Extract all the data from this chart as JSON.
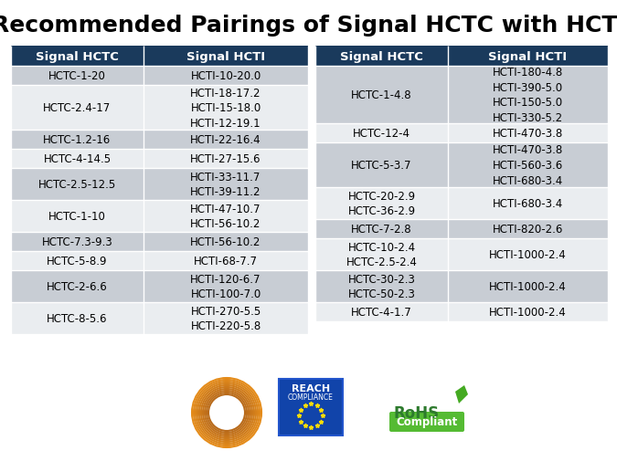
{
  "title": "Recommended Pairings of Signal HCTC with HCTI",
  "title_fontsize": 18,
  "title_fontweight": "bold",
  "background_color": "#ffffff",
  "header_bg": "#1a3a5c",
  "header_fg": "#ffffff",
  "header_fontsize": 9.5,
  "cell_fontsize": 8.5,
  "odd_row_bg": "#c8cdd4",
  "even_row_bg": "#eaedf0",
  "cell_fg": "#000000",
  "border_color": "#ffffff",
  "left_table": {
    "headers": [
      "Signal HCTC",
      "Signal HCTI"
    ],
    "rows": [
      [
        "HCTC-1-20",
        "HCTI-10-20.0"
      ],
      [
        "HCTC-2.4-17",
        "HCTI-18-17.2\nHCTI-15-18.0\nHCTI-12-19.1"
      ],
      [
        "HCTC-1.2-16",
        "HCTI-22-16.4"
      ],
      [
        "HCTC-4-14.5",
        "HCTI-27-15.6"
      ],
      [
        "HCTC-2.5-12.5",
        "HCTI-33-11.7\nHCTI-39-11.2"
      ],
      [
        "HCTC-1-10",
        "HCTI-47-10.7\nHCTI-56-10.2"
      ],
      [
        "HCTC-7.3-9.3",
        "HCTI-56-10.2"
      ],
      [
        "HCTC-5-8.9",
        "HCTI-68-7.7"
      ],
      [
        "HCTC-2-6.6",
        "HCTI-120-6.7\nHCTI-100-7.0"
      ],
      [
        "HCTC-8-5.6",
        "HCTI-270-5.5\nHCTI-220-5.8"
      ]
    ]
  },
  "right_table": {
    "headers": [
      "Signal HCTC",
      "Signal HCTI"
    ],
    "rows": [
      [
        "HCTC-1-4.8",
        "HCTI-180-4.8\nHCTI-390-5.0\nHCTI-150-5.0\nHCTI-330-5.2"
      ],
      [
        "HCTC-12-4",
        "HCTI-470-3.8"
      ],
      [
        "HCTC-5-3.7",
        "HCTI-470-3.8\nHCTI-560-3.6\nHCTI-680-3.4"
      ],
      [
        "HCTC-20-2.9\nHCTC-36-2.9",
        "HCTI-680-3.4"
      ],
      [
        "HCTC-7-2.8",
        "HCTI-820-2.6"
      ],
      [
        "HCTC-10-2.4\nHCTC-2.5-2.4",
        "HCTI-1000-2.4"
      ],
      [
        "HCTC-30-2.3\nHCTC-50-2.3",
        "HCTI-1000-2.4"
      ],
      [
        "HCTC-4-1.7",
        "HCTI-1000-2.4"
      ]
    ]
  }
}
